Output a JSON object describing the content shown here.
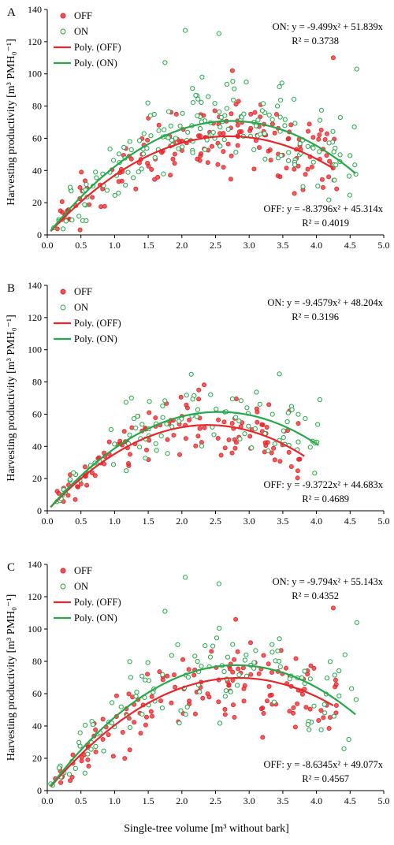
{
  "figure": {
    "xlabel": "Single-tree volume [m³ without bark]",
    "colors": {
      "off": "#e8262b",
      "on": "#24a94a",
      "axis": "#000000"
    },
    "x_ticks": [
      "0.0",
      "0.5",
      "1.0",
      "1.5",
      "2.0",
      "2.5",
      "3.0",
      "3.5",
      "4.0",
      "4.5",
      "5.0"
    ],
    "y_ticks": [
      "0",
      "20",
      "40",
      "60",
      "80",
      "100",
      "120",
      "140"
    ],
    "legend_labels": [
      "OFF",
      "ON",
      "Poly. (OFF)",
      "Poly. (ON)"
    ]
  },
  "chart_data": [
    {
      "panel": "A",
      "type": "scatter",
      "ylabel": "Harvesting productivity [m³ PMH₀⁻¹]",
      "xlim": [
        0,
        5
      ],
      "ylim": [
        0,
        140
      ],
      "on_eq": "ON: y = -9.499x² + 51.839x",
      "on_r2": "R² = 0.3738",
      "off_eq": "OFF: y = -8.3796x² + 45.314x",
      "off_r2": "R² = 0.4019",
      "series": [
        {
          "name": "OFF",
          "kind": "points",
          "seed": 11,
          "n": 175,
          "xmax": 4.3,
          "a": -8.3796,
          "b": 45.314,
          "sd": 11,
          "extra": [
            [
              4.25,
              110
            ],
            [
              2.75,
              102
            ],
            [
              3.8,
              28
            ],
            [
              4.05,
              47
            ],
            [
              0.3,
              15
            ]
          ]
        },
        {
          "name": "ON",
          "kind": "points",
          "seed": 23,
          "n": 175,
          "xmax": 4.6,
          "a": -9.499,
          "b": 51.839,
          "sd": 13,
          "extra": [
            [
              2.05,
              127
            ],
            [
              2.55,
              125
            ],
            [
              1.75,
              107
            ],
            [
              4.6,
              103
            ],
            [
              3.45,
              92
            ],
            [
              2.3,
              98
            ],
            [
              3.8,
              30
            ]
          ]
        },
        {
          "name": "Poly. (OFF)",
          "kind": "fit",
          "a": -8.3796,
          "b": 45.314,
          "x0": 0.05,
          "x1": 4.25
        },
        {
          "name": "Poly. (ON)",
          "kind": "fit",
          "a": -9.499,
          "b": 51.839,
          "x0": 0.05,
          "x1": 4.58
        }
      ]
    },
    {
      "panel": "B",
      "type": "scatter",
      "ylabel": "Harvesting productivity [m³ PMH₀⁻¹]",
      "xlim": [
        0,
        5
      ],
      "ylim": [
        0,
        140
      ],
      "on_eq": "ON: y = -9.4579x² + 48.204x",
      "on_r2": "R² = 0.3196",
      "off_eq": "OFF: y = -9.3722x² + 44.683x",
      "off_r2": "R² = 0.4689",
      "series": [
        {
          "name": "OFF",
          "kind": "points",
          "seed": 37,
          "n": 120,
          "xmax": 3.8,
          "a": -9.3722,
          "b": 44.683,
          "sd": 9,
          "extra": [
            [
              2.25,
              75
            ],
            [
              3.6,
              62
            ],
            [
              3.75,
              32
            ]
          ]
        },
        {
          "name": "ON",
          "kind": "points",
          "seed": 41,
          "n": 95,
          "xmax": 4.05,
          "a": -9.4579,
          "b": 48.204,
          "sd": 10,
          "extra": [
            [
              3.45,
              85
            ],
            [
              4.05,
              69
            ],
            [
              1.25,
              70
            ]
          ]
        },
        {
          "name": "Poly. (OFF)",
          "kind": "fit",
          "a": -9.3722,
          "b": 44.683,
          "x0": 0.05,
          "x1": 3.82
        },
        {
          "name": "Poly. (ON)",
          "kind": "fit",
          "a": -9.4579,
          "b": 48.204,
          "x0": 0.05,
          "x1": 4.03
        }
      ]
    },
    {
      "panel": "C",
      "type": "scatter",
      "ylabel": "Harvesting productivity [m³ PMH₀⁻¹]",
      "xlim": [
        0,
        5
      ],
      "ylim": [
        0,
        140
      ],
      "on_eq": "ON: y = -9.794x² + 55.143x",
      "on_r2": "R² = 0.4352",
      "off_eq": "OFF: y = -8.6345x² + 49.077x",
      "off_r2": "R² = 0.4567",
      "series": [
        {
          "name": "OFF",
          "kind": "points",
          "seed": 53,
          "n": 150,
          "xmax": 4.3,
          "a": -8.6345,
          "b": 49.077,
          "sd": 12,
          "extra": [
            [
              4.25,
              113
            ],
            [
              2.8,
              106
            ],
            [
              3.2,
              33
            ]
          ]
        },
        {
          "name": "ON",
          "kind": "points",
          "seed": 67,
          "n": 120,
          "xmax": 4.6,
          "a": -9.794,
          "b": 55.143,
          "sd": 13,
          "extra": [
            [
              2.05,
              132
            ],
            [
              2.55,
              128
            ],
            [
              1.75,
              111
            ],
            [
              4.6,
              104
            ],
            [
              3.45,
              94
            ]
          ]
        },
        {
          "name": "Poly. (OFF)",
          "kind": "fit",
          "a": -8.6345,
          "b": 49.077,
          "x0": 0.05,
          "x1": 4.25
        },
        {
          "name": "Poly. (ON)",
          "kind": "fit",
          "a": -9.794,
          "b": 55.143,
          "x0": 0.05,
          "x1": 4.58
        }
      ]
    }
  ]
}
